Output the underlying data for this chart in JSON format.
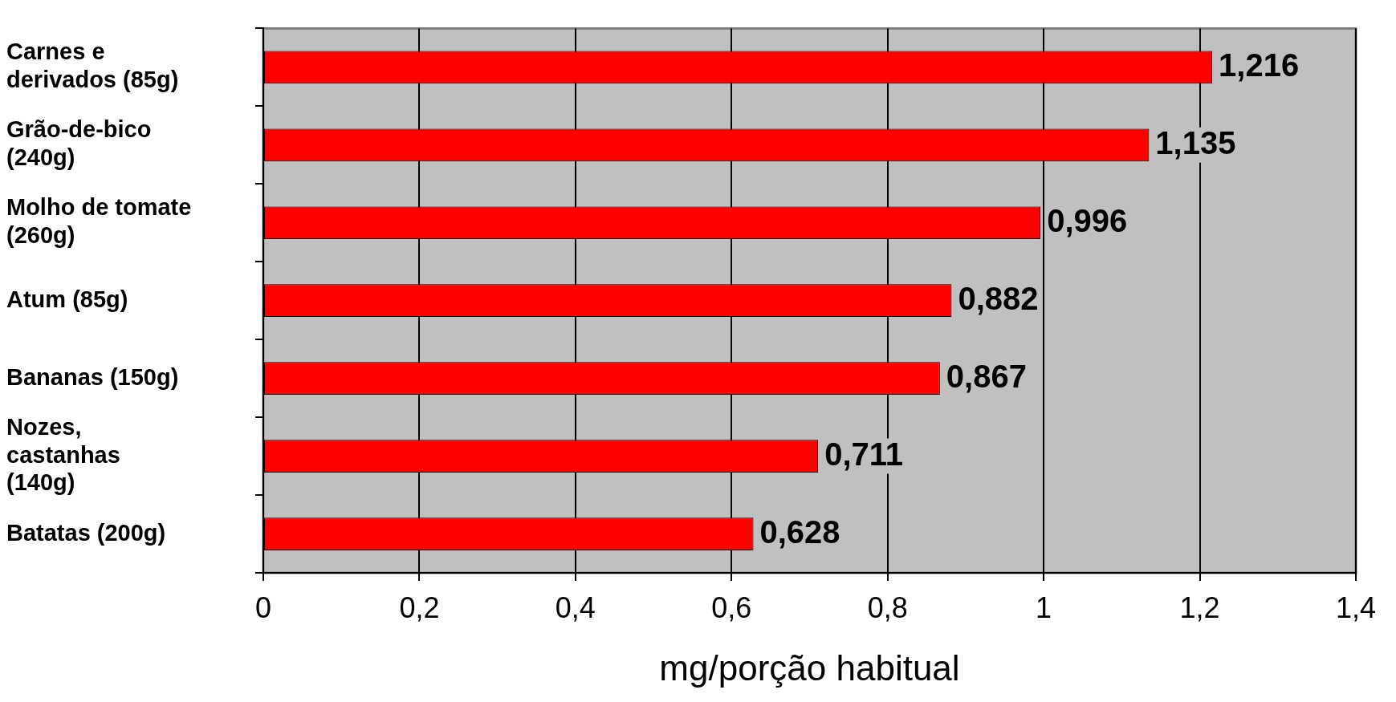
{
  "chart_data": {
    "type": "bar",
    "orientation": "horizontal",
    "xlabel": "mg/porção habitual",
    "categories": [
      "Carnes e derivados (85g)",
      "Grão-de-bico (240g)",
      "Molho de tomate (260g)",
      "Atum (85g)",
      "Bananas (150g)",
      "Nozes, castanhas (140g)",
      "Batatas (200g)"
    ],
    "values": [
      1.216,
      1.135,
      0.996,
      0.882,
      0.867,
      0.711,
      0.628
    ],
    "value_labels": [
      "1,216",
      "1,135",
      "0,996",
      "0,882",
      "0,867",
      "0,711",
      "0,628"
    ],
    "color": "#ff0000",
    "xlim": [
      0,
      1.4
    ],
    "xticks": [
      0,
      {
        "value": 0.2,
        "label": "0,2"
      },
      {
        "value": 0.4,
        "label": "0,4"
      },
      {
        "value": 0.6,
        "label": "0,6"
      },
      {
        "value": 0.8,
        "label": "0,8"
      },
      1,
      {
        "value": 1.2,
        "label": "1,2"
      },
      {
        "value": 1.4,
        "label": "1,4"
      }
    ],
    "grid": "x",
    "legend": false
  }
}
